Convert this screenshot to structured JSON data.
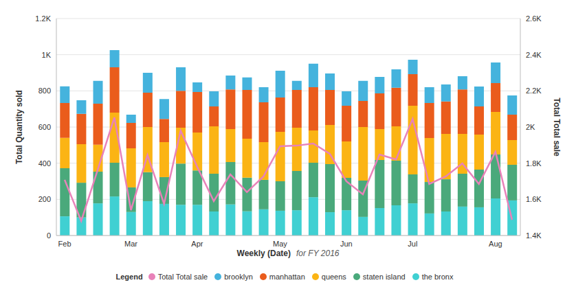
{
  "chart_data": {
    "type": "bar",
    "stacked": true,
    "grid": true,
    "legend": "bottom",
    "legend_title": "Legend",
    "xlabel": "Weekly (Date)",
    "subtitle": "for FY 2016",
    "ylabel": "Total Quantity sold",
    "y2label": "Total Total sale",
    "categories": [
      "Feb",
      null,
      null,
      null,
      "Mar",
      null,
      null,
      null,
      "Apr",
      null,
      null,
      null,
      null,
      "May",
      null,
      null,
      null,
      "Jun",
      null,
      null,
      null,
      "Jul",
      null,
      null,
      null,
      null,
      "Aug",
      null
    ],
    "ylim": [
      0,
      1200
    ],
    "yticks": [
      0,
      200,
      400,
      600,
      800,
      {
        "value": 1000,
        "label": "1K"
      },
      {
        "value": 1200,
        "label": "1.2K"
      }
    ],
    "y2lim": [
      1400,
      2600
    ],
    "y2ticks": [
      {
        "value": 1400,
        "label": "1.4K"
      },
      {
        "value": 1600,
        "label": "1.6K"
      },
      {
        "value": 1800,
        "label": "1.8K"
      },
      {
        "value": 2000,
        "label": "2K"
      },
      {
        "value": 2200,
        "label": "2.2K"
      },
      {
        "value": 2400,
        "label": "2.4K"
      },
      {
        "value": 2600,
        "label": "2.6K"
      }
    ],
    "series": [
      {
        "name": "Total Total sale",
        "type": "line",
        "axis": "y2",
        "color": "#e882b9",
        "values": [
          1708,
          1480,
          1765,
          2053,
          1540,
          1845,
          1575,
          1980,
          1780,
          1590,
          1738,
          1640,
          1727,
          1894,
          1897,
          1909,
          1852,
          1700,
          1628,
          1848,
          1821,
          2045,
          1685,
          1727,
          1799,
          1685,
          1863,
          1487
        ]
      },
      {
        "name": "brooklyn",
        "type": "bar",
        "color": "#45b3dd",
        "values": [
          92,
          75,
          126,
          95,
          45,
          110,
          110,
          130,
          53,
          83,
          77,
          69,
          83,
          148,
          50,
          130,
          91,
          79,
          111,
          91,
          102,
          80,
          87,
          94,
          73,
          110,
          114,
          107
        ]
      },
      {
        "name": "manhattan",
        "type": "bar",
        "color": "#ea5c1c",
        "values": [
          193,
          168,
          227,
          250,
          141,
          190,
          129,
          204,
          224,
          110,
          219,
          270,
          221,
          190,
          209,
          239,
          194,
          198,
          144,
          197,
          213,
          174,
          194,
          179,
          246,
          156,
          159,
          140
        ]
      },
      {
        "name": "queens",
        "type": "bar",
        "color": "#fbb414",
        "values": [
          168,
          213,
          149,
          277,
          216,
          250,
          193,
          198,
          210,
          262,
          183,
          215,
          208,
          273,
          239,
          178,
          216,
          201,
          296,
          171,
          190,
          380,
          243,
          251,
          220,
          193,
          236,
          137
        ]
      },
      {
        "name": "staten island",
        "type": "bar",
        "color": "#4aa97b",
        "values": [
          266,
          192,
          175,
          187,
          136,
          160,
          148,
          228,
          190,
          209,
          234,
          186,
          163,
          163,
          217,
          191,
          266,
          179,
          201,
          266,
          247,
          160,
          174,
          178,
          182,
          209,
          243,
          197
        ]
      },
      {
        "name": "the bronx",
        "type": "bar",
        "color": "#40d0d2",
        "values": [
          106,
          100,
          178,
          216,
          130,
          190,
          175,
          170,
          170,
          133,
          172,
          134,
          145,
          137,
          140,
          212,
          129,
          140,
          103,
          152,
          167,
          178,
          122,
          133,
          160,
          156,
          205,
          194
        ]
      }
    ]
  }
}
